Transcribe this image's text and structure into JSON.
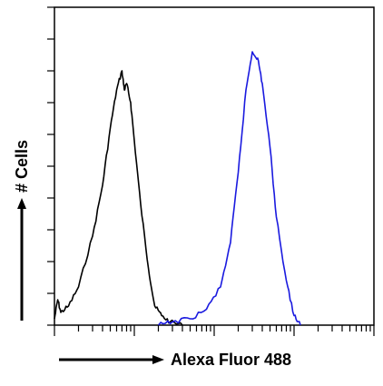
{
  "chart_data": {
    "type": "line",
    "title": "",
    "xlabel": "Alexa Fluor 488",
    "ylabel": "# Cells",
    "x_scale": "log",
    "xlim": [
      0.1,
      1000
    ],
    "ylim": [
      0,
      1
    ],
    "grid": false,
    "legend": "none",
    "series": [
      {
        "color": "#000000",
        "points": [
          [
            0.1,
            0.02
          ],
          [
            0.11,
            0.08
          ],
          [
            0.12,
            0.04
          ],
          [
            0.15,
            0.06
          ],
          [
            0.2,
            0.12
          ],
          [
            0.3,
            0.28
          ],
          [
            0.4,
            0.44
          ],
          [
            0.5,
            0.62
          ],
          [
            0.6,
            0.74
          ],
          [
            0.7,
            0.8
          ],
          [
            0.75,
            0.74
          ],
          [
            0.8,
            0.76
          ],
          [
            0.9,
            0.7
          ],
          [
            1.0,
            0.58
          ],
          [
            1.2,
            0.38
          ],
          [
            1.5,
            0.18
          ],
          [
            1.8,
            0.06
          ],
          [
            2.2,
            0.03
          ],
          [
            2.8,
            0.01
          ],
          [
            4.0,
            0.0
          ]
        ]
      },
      {
        "color": "#1a1adf",
        "points": [
          [
            2.0,
            0.0
          ],
          [
            3.0,
            0.01
          ],
          [
            5.0,
            0.02
          ],
          [
            8.0,
            0.05
          ],
          [
            12.0,
            0.12
          ],
          [
            16.0,
            0.26
          ],
          [
            20.0,
            0.48
          ],
          [
            25.0,
            0.74
          ],
          [
            30.0,
            0.86
          ],
          [
            35.0,
            0.84
          ],
          [
            40.0,
            0.76
          ],
          [
            50.0,
            0.56
          ],
          [
            60.0,
            0.34
          ],
          [
            80.0,
            0.14
          ],
          [
            100.0,
            0.03
          ],
          [
            120.0,
            0.0
          ]
        ]
      }
    ]
  }
}
